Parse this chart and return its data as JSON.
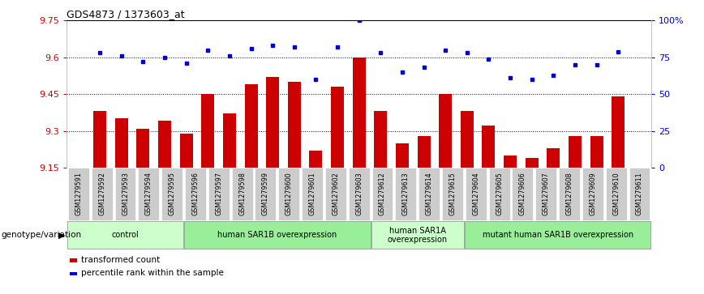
{
  "title": "GDS4873 / 1373603_at",
  "samples": [
    "GSM1279591",
    "GSM1279592",
    "GSM1279593",
    "GSM1279594",
    "GSM1279595",
    "GSM1279596",
    "GSM1279597",
    "GSM1279598",
    "GSM1279599",
    "GSM1279600",
    "GSM1279601",
    "GSM1279602",
    "GSM1279603",
    "GSM1279612",
    "GSM1279613",
    "GSM1279614",
    "GSM1279615",
    "GSM1279604",
    "GSM1279605",
    "GSM1279606",
    "GSM1279607",
    "GSM1279608",
    "GSM1279609",
    "GSM1279610",
    "GSM1279611"
  ],
  "bar_values": [
    9.38,
    9.35,
    9.31,
    9.34,
    9.29,
    9.45,
    9.37,
    9.49,
    9.52,
    9.5,
    9.22,
    9.48,
    9.6,
    9.38,
    9.25,
    9.28,
    9.45,
    9.38,
    9.32,
    9.2,
    9.19,
    9.23,
    9.28,
    9.28,
    9.44
  ],
  "dot_values_pct": [
    78,
    76,
    72,
    75,
    71,
    80,
    76,
    81,
    83,
    82,
    60,
    82,
    100,
    78,
    65,
    68,
    80,
    78,
    74,
    61,
    60,
    63,
    70,
    70,
    79
  ],
  "ylim_left": [
    9.15,
    9.75
  ],
  "ylim_right": [
    0,
    100
  ],
  "yticks_left": [
    9.15,
    9.3,
    9.45,
    9.6,
    9.75
  ],
  "ytick_labels_left": [
    "9.15",
    "9.3",
    "9.45",
    "9.6",
    "9.75"
  ],
  "yticks_right": [
    0,
    25,
    50,
    75,
    100
  ],
  "ytick_labels_right": [
    "0",
    "25",
    "50",
    "75",
    "100%"
  ],
  "hlines": [
    9.3,
    9.45,
    9.6
  ],
  "bar_color": "#cc0000",
  "dot_color": "#0000cc",
  "groups": [
    {
      "label": "control",
      "start": 0,
      "end": 4,
      "color": "#ccffcc"
    },
    {
      "label": "human SAR1B overexpression",
      "start": 5,
      "end": 12,
      "color": "#99ee99"
    },
    {
      "label": "human SAR1A\noverexpression",
      "start": 13,
      "end": 16,
      "color": "#ccffcc"
    },
    {
      "label": "mutant human SAR1B overexpression",
      "start": 17,
      "end": 24,
      "color": "#99ee99"
    }
  ],
  "legend_label_bar": "transformed count",
  "legend_label_dot": "percentile rank within the sample",
  "xlabel_left": "genotype/variation",
  "tick_color_left": "#cc0000",
  "tick_color_right": "#0000cc",
  "sample_bg_color": "#cccccc",
  "top_border_color": "#000000"
}
